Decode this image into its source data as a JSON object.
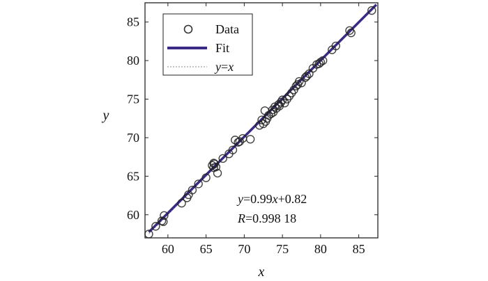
{
  "chart_data": {
    "type": "scatter",
    "title": "",
    "xlabel": "x",
    "ylabel": "y",
    "xlim": [
      57,
      87.5
    ],
    "ylim": [
      57,
      87.5
    ],
    "xticks": [
      60,
      65,
      70,
      75,
      80,
      85
    ],
    "yticks": [
      60,
      65,
      70,
      75,
      80,
      85
    ],
    "grid": false,
    "legend": {
      "position": "top-left",
      "entries": [
        {
          "label": "Data",
          "marker": "circle"
        },
        {
          "label": "Fit",
          "line": "solid"
        },
        {
          "label": "y=x",
          "line": "dotted"
        }
      ]
    },
    "series": [
      {
        "name": "Data",
        "marker": "circle",
        "color": "#222222",
        "x": [
          57.5,
          58.4,
          59.2,
          59.4,
          59.5,
          61.8,
          62.5,
          62.7,
          63.2,
          64.0,
          65.0,
          65.8,
          66.0,
          66.0,
          66.1,
          66.3,
          66.5,
          67.2,
          68.0,
          68.5,
          68.8,
          69.2,
          69.4,
          69.8,
          70.8,
          72.0,
          72.3,
          72.5,
          72.7,
          72.8,
          73.0,
          73.2,
          73.5,
          73.7,
          73.8,
          74.0,
          74.2,
          74.5,
          74.6,
          74.8,
          75.0,
          75.3,
          75.6,
          75.9,
          76.2,
          76.5,
          76.8,
          77.0,
          77.2,
          77.5,
          78.0,
          78.2,
          78.5,
          79.0,
          79.5,
          79.8,
          80.0,
          80.3,
          81.5,
          82.0,
          83.8,
          84.0,
          86.7
        ],
        "y": [
          57.5,
          58.5,
          59.2,
          59.1,
          59.9,
          61.5,
          62.2,
          62.6,
          63.2,
          64.0,
          64.8,
          66.4,
          66.1,
          66.7,
          66.6,
          66.2,
          65.4,
          67.3,
          67.9,
          68.4,
          69.7,
          69.4,
          69.5,
          69.9,
          69.8,
          71.6,
          72.3,
          71.8,
          73.5,
          72.1,
          72.5,
          72.9,
          73.1,
          73.6,
          73.3,
          74.0,
          73.8,
          74.3,
          74.1,
          74.6,
          74.9,
          74.5,
          75.0,
          75.4,
          75.8,
          76.2,
          76.7,
          76.9,
          77.3,
          77.1,
          77.8,
          78.0,
          78.3,
          79.0,
          79.5,
          79.6,
          79.8,
          80.0,
          81.4,
          81.9,
          83.9,
          83.6,
          86.5
        ]
      },
      {
        "name": "Fit",
        "line": "solid",
        "color": "#3a2a86",
        "x": [
          57.5,
          87.3
        ],
        "y": [
          57.75,
          87.25
        ]
      },
      {
        "name": "y=x",
        "line": "dotted",
        "color": "#999999",
        "x": [
          57.5,
          87.3
        ],
        "y": [
          57.5,
          87.3
        ]
      }
    ],
    "annotations": [
      {
        "text_parts": [
          {
            "t": "y",
            "italic": true
          },
          {
            "t": "=0.99",
            "italic": false
          },
          {
            "t": "x",
            "italic": true
          },
          {
            "t": "+0.82",
            "italic": false
          }
        ]
      },
      {
        "text_parts": [
          {
            "t": "R",
            "italic": true
          },
          {
            "t": "=0.998 18",
            "italic": false
          }
        ]
      }
    ]
  }
}
